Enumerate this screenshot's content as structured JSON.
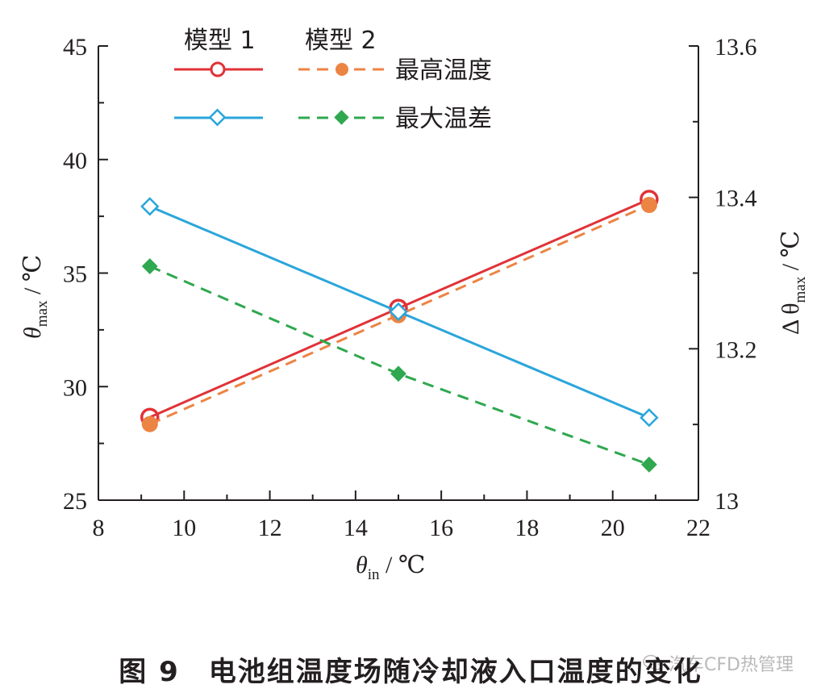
{
  "caption": "图 9　电池组温度场随冷却液入口温度的变化",
  "watermark": "汽车CFD热管理",
  "colors": {
    "model1_max_temp": "#e03237",
    "model2_max_temp": "#ec8444",
    "model1_max_diff": "#2aa6db",
    "model2_max_diff": "#2fa84f",
    "axis": "#231f20"
  },
  "legend": {
    "model1": "模型 1",
    "model2": "模型 2",
    "max_temp": "最高温度",
    "max_diff": "最大温差"
  },
  "axis_labels": {
    "x_main": "θ",
    "x_sub": "in",
    "x_unit": " / ℃",
    "y_left_main": "θ",
    "y_left_sub": "max",
    "y_left_unit": " / ℃",
    "y_right_prefix": "Δ θ",
    "y_right_sub": "max",
    "y_right_unit": " / ℃"
  },
  "chart_data": {
    "type": "line",
    "x_ticks": [
      "8",
      "10",
      "12",
      "14",
      "16",
      "18",
      "20",
      "22"
    ],
    "y_left_ticks": [
      "25",
      "30",
      "35",
      "40",
      "45"
    ],
    "y_right_ticks": [
      "13",
      "13.2",
      "13.4",
      "13.6"
    ],
    "xlim": [
      8,
      22
    ],
    "ylim_left": [
      25,
      45
    ],
    "ylim_right": [
      13.0,
      13.6
    ],
    "grid": false,
    "series": [
      {
        "name": "模型 1 最高温度",
        "axis": "left",
        "style": "solid",
        "marker": "open-circle",
        "color_key": "model1_max_temp",
        "x": [
          9.2,
          15.0,
          20.85
        ],
        "y": [
          28.65,
          33.45,
          38.25
        ]
      },
      {
        "name": "模型 2 最高温度",
        "axis": "left",
        "style": "dashed",
        "marker": "filled-circle",
        "color_key": "model2_max_temp",
        "x": [
          9.2,
          15.0,
          20.85
        ],
        "y": [
          28.35,
          33.15,
          38.0
        ]
      },
      {
        "name": "模型 1 最大温差",
        "axis": "right",
        "style": "solid",
        "marker": "open-diamond",
        "color_key": "model1_max_diff",
        "x": [
          9.2,
          15.0,
          20.85
        ],
        "y": [
          13.388,
          13.249,
          13.109
        ]
      },
      {
        "name": "模型 2 最大温差",
        "axis": "right",
        "style": "dashed",
        "marker": "filled-diamond",
        "color_key": "model2_max_diff",
        "x": [
          9.2,
          15.0,
          20.85
        ],
        "y": [
          13.309,
          13.167,
          13.047
        ]
      }
    ]
  }
}
